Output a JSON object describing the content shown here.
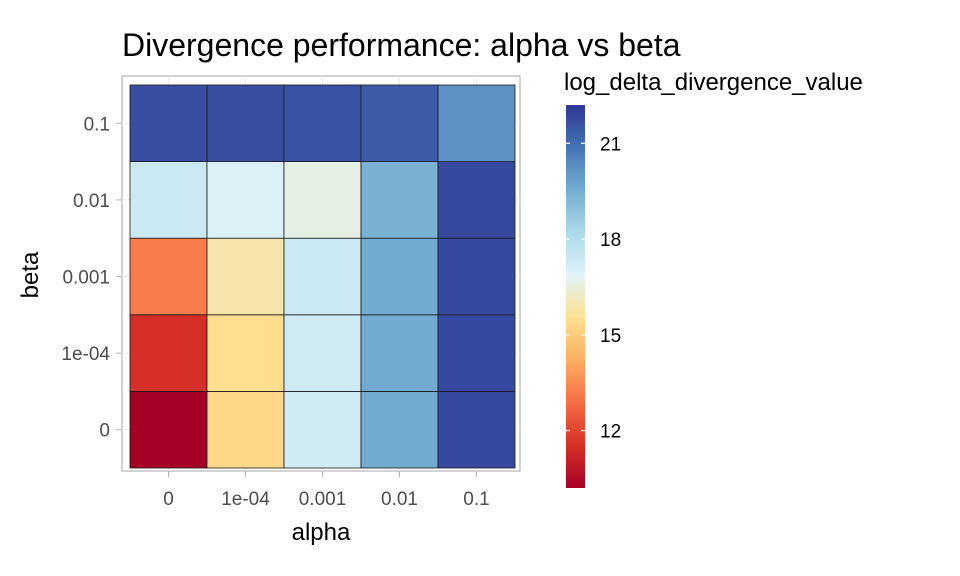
{
  "chart_data": {
    "type": "heatmap",
    "title": "Divergence performance: alpha vs beta",
    "xlabel": "alpha",
    "ylabel": "beta",
    "x_categories": [
      "0",
      "1e-04",
      "0.001",
      "0.01",
      "0.1"
    ],
    "y_categories": [
      "0",
      "1e-04",
      "0.001",
      "0.01",
      "0.1"
    ],
    "values": [
      [
        10.2,
        15.3,
        17.3,
        19.6,
        21.8
      ],
      [
        11.5,
        15.5,
        17.3,
        19.6,
        21.8
      ],
      [
        13.2,
        15.9,
        17.4,
        19.6,
        21.8
      ],
      [
        17.4,
        17.0,
        16.6,
        19.4,
        21.8
      ],
      [
        21.7,
        21.7,
        21.6,
        21.4,
        20.2
      ]
    ],
    "legend": {
      "title": "log_delta_divergence_value",
      "ticks": [
        12,
        15,
        18,
        21
      ],
      "range": [
        10.2,
        22.2
      ],
      "placement": "right"
    },
    "grid": true,
    "colors": {
      "scale": [
        "#a50026",
        "#d73027",
        "#f46d43",
        "#fdae61",
        "#fee090",
        "#e0f3f8",
        "#abd9e9",
        "#74add1",
        "#4575b4",
        "#313695"
      ]
    }
  }
}
